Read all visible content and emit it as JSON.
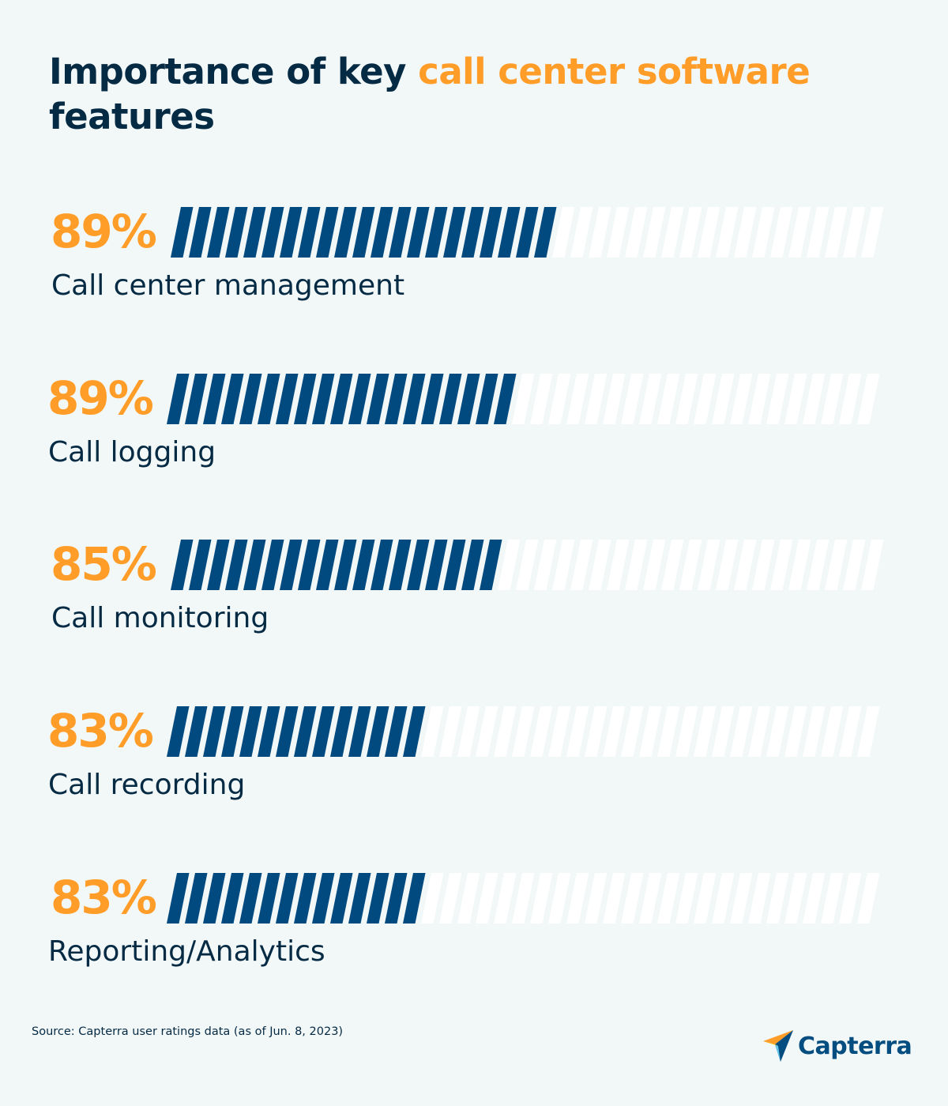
{
  "title": {
    "part1": "Importance of key ",
    "highlight": "call center software",
    "part2": " features"
  },
  "colors": {
    "background": "#f2f7f7",
    "navy": "#052a44",
    "orange": "#ff9d28",
    "bar_filled": "#004a80",
    "bar_empty": "#ffffff"
  },
  "chart_data": {
    "type": "bar",
    "orientation": "horizontal",
    "unit": "%",
    "categories": [
      "Call center management",
      "Call logging",
      "Call monitoring",
      "Call recording",
      "Reporting/Analytics"
    ],
    "values": [
      89,
      89,
      85,
      83,
      83
    ],
    "value_labels": [
      "89%",
      "89%",
      "85%",
      "83%",
      "83%"
    ],
    "filled_segments": [
      21,
      19,
      18,
      14,
      14
    ],
    "total_segments": 39
  },
  "footer": {
    "source": "Source: Capterra user ratings data (as of Jun. 8, 2023)",
    "brand": "Capterra"
  }
}
